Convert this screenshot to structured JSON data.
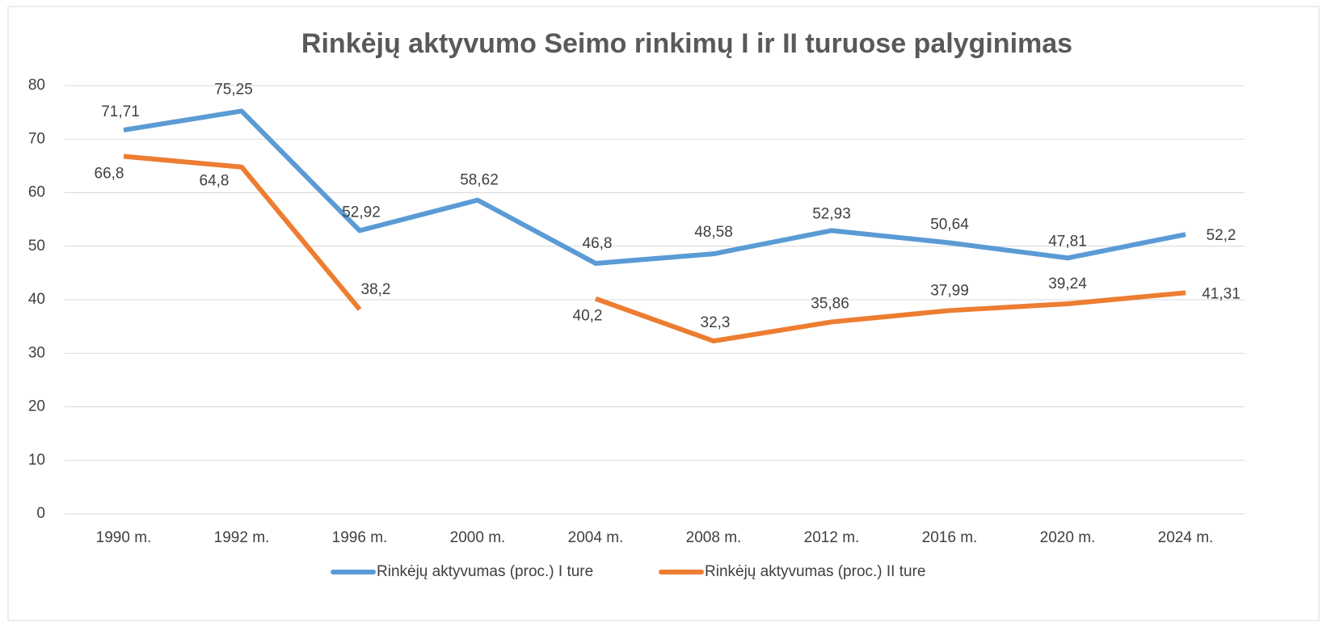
{
  "chart_data": {
    "type": "line",
    "title": "Rinkėjų aktyvumo Seimo rinkimų I ir II turuose palyginimas",
    "categories": [
      "1990 m.",
      "1992 m.",
      "1996 m.",
      "2000 m.",
      "2004 m.",
      "2008 m.",
      "2012 m.",
      "2016 m.",
      "2020 m.",
      "2024 m."
    ],
    "series": [
      {
        "name": "Rinkėjų aktyvumas (proc.) I ture",
        "color": "#5b9bd5",
        "values": [
          71.71,
          75.25,
          52.92,
          58.62,
          46.8,
          48.58,
          52.93,
          50.64,
          47.81,
          52.2
        ],
        "value_labels": [
          "71,71",
          "75,25",
          "52,92",
          "58,62",
          "46,8",
          "48,58",
          "52,93",
          "50,64",
          "47,81",
          "52,2"
        ]
      },
      {
        "name": "Rinkėjų aktyvumas (proc.) II ture",
        "color": "#ed7d31",
        "values": [
          66.8,
          64.8,
          38.2,
          null,
          40.2,
          32.3,
          35.86,
          37.99,
          39.24,
          41.31
        ],
        "value_labels": [
          "66,8",
          "64,8",
          "38,2",
          null,
          "40,2",
          "32,3",
          "35,86",
          "37,99",
          "39,24",
          "41,31"
        ]
      }
    ],
    "ylim": [
      0,
      80
    ],
    "yticks": [
      0,
      10,
      20,
      30,
      40,
      50,
      60,
      70,
      80
    ],
    "grid": true,
    "legend": "bottom"
  }
}
